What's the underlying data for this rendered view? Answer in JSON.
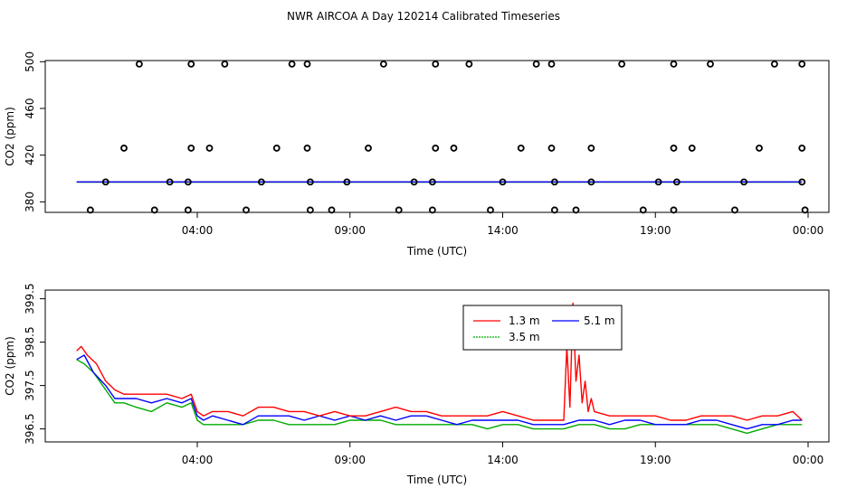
{
  "title": "NWR AIRCOA A  Day 120214  Calibrated Timeseries",
  "chart_data": [
    {
      "type": "scatter",
      "xlabel": "Time (UTC)",
      "ylabel": "CO2 (ppm)",
      "xlim": [
        0,
        24
      ],
      "ylim": [
        371,
        501
      ],
      "xticks": [
        {
          "value": 4,
          "label": "04:00"
        },
        {
          "value": 9,
          "label": "09:00"
        },
        {
          "value": 14,
          "label": "14:00"
        },
        {
          "value": 19,
          "label": "19:00"
        },
        {
          "value": 24,
          "label": "00:00"
        }
      ],
      "yticks": [
        {
          "value": 380,
          "label": "380"
        },
        {
          "value": 420,
          "label": "420"
        },
        {
          "value": 460,
          "label": "460"
        },
        {
          "value": 500,
          "label": "500"
        }
      ],
      "points": [
        [
          2.1,
          498
        ],
        [
          3.8,
          498
        ],
        [
          4.9,
          498
        ],
        [
          7.1,
          498
        ],
        [
          7.6,
          498
        ],
        [
          10.1,
          498
        ],
        [
          11.8,
          498
        ],
        [
          12.9,
          498
        ],
        [
          15.1,
          498
        ],
        [
          15.6,
          498
        ],
        [
          17.9,
          498
        ],
        [
          19.6,
          498
        ],
        [
          20.8,
          498
        ],
        [
          22.9,
          498
        ],
        [
          23.8,
          498
        ],
        [
          1.6,
          426
        ],
        [
          3.8,
          426
        ],
        [
          4.4,
          426
        ],
        [
          6.6,
          426
        ],
        [
          7.6,
          426
        ],
        [
          9.6,
          426
        ],
        [
          11.8,
          426
        ],
        [
          12.4,
          426
        ],
        [
          14.6,
          426
        ],
        [
          15.6,
          426
        ],
        [
          16.9,
          426
        ],
        [
          19.6,
          426
        ],
        [
          20.2,
          426
        ],
        [
          22.4,
          426
        ],
        [
          23.8,
          426
        ],
        [
          1.0,
          397
        ],
        [
          3.1,
          397
        ],
        [
          3.7,
          397
        ],
        [
          6.1,
          397
        ],
        [
          7.7,
          397
        ],
        [
          8.9,
          397
        ],
        [
          11.1,
          397
        ],
        [
          11.7,
          397
        ],
        [
          14.0,
          397
        ],
        [
          15.7,
          397
        ],
        [
          16.9,
          397
        ],
        [
          19.1,
          397
        ],
        [
          19.7,
          397
        ],
        [
          21.9,
          397
        ],
        [
          23.8,
          397
        ],
        [
          0.5,
          373
        ],
        [
          2.6,
          373
        ],
        [
          3.7,
          373
        ],
        [
          5.6,
          373
        ],
        [
          7.7,
          373
        ],
        [
          8.4,
          373
        ],
        [
          10.6,
          373
        ],
        [
          11.7,
          373
        ],
        [
          13.6,
          373
        ],
        [
          15.7,
          373
        ],
        [
          16.4,
          373
        ],
        [
          18.6,
          373
        ],
        [
          19.6,
          373
        ],
        [
          21.6,
          373
        ],
        [
          23.9,
          373
        ]
      ],
      "series": [
        {
          "name": "1.3 m",
          "color": "#ff0000",
          "values_ref": "chart_data.1"
        },
        {
          "name": "5.1 m",
          "color": "#0000ff"
        },
        {
          "name": "3.5 m",
          "color": "#00aa00"
        }
      ],
      "series_level_ppm": 397
    },
    {
      "type": "line",
      "xlabel": "Time (UTC)",
      "ylabel": "CO2 (ppm)",
      "xlim": [
        0,
        24
      ],
      "ylim": [
        396.2,
        399.7
      ],
      "xticks": [
        {
          "value": 4,
          "label": "04:00"
        },
        {
          "value": 9,
          "label": "09:00"
        },
        {
          "value": 14,
          "label": "14:00"
        },
        {
          "value": 19,
          "label": "19:00"
        },
        {
          "value": 24,
          "label": "00:00"
        }
      ],
      "yticks": [
        {
          "value": 396.5,
          "label": "396.5"
        },
        {
          "value": 397.5,
          "label": "397.5"
        },
        {
          "value": 398.5,
          "label": "398.5"
        },
        {
          "value": 399.5,
          "label": "399.5"
        }
      ],
      "legend": {
        "placement": "top-center",
        "entries": [
          {
            "name": "1.3 m",
            "color": "#ff0000"
          },
          {
            "name": "5.1 m",
            "color": "#0000ff"
          },
          {
            "name": "3.5 m",
            "color": "#00aa00"
          }
        ]
      },
      "series": [
        {
          "name": "1.3 m",
          "color": "#ff0000",
          "x": [
            0.05,
            0.2,
            0.4,
            0.7,
            1.0,
            1.3,
            1.6,
            2.0,
            2.5,
            3.0,
            3.5,
            3.8,
            4.0,
            4.2,
            4.5,
            5.0,
            5.5,
            6.0,
            6.5,
            7.0,
            7.5,
            8.0,
            8.5,
            9.0,
            9.5,
            10.0,
            10.5,
            11.0,
            11.5,
            12.0,
            12.5,
            13.0,
            13.5,
            14.0,
            14.5,
            15.0,
            15.5,
            15.8,
            16.0,
            16.1,
            16.2,
            16.3,
            16.4,
            16.5,
            16.6,
            16.7,
            16.8,
            16.9,
            17.0,
            17.5,
            18.0,
            18.5,
            19.0,
            19.5,
            20.0,
            20.5,
            21.0,
            21.5,
            22.0,
            22.5,
            23.0,
            23.5,
            23.8
          ],
          "values": [
            398.3,
            398.4,
            398.2,
            398.0,
            397.6,
            397.4,
            397.3,
            397.3,
            397.3,
            397.3,
            397.2,
            397.3,
            396.9,
            396.8,
            396.9,
            396.9,
            396.8,
            397.0,
            397.0,
            396.9,
            396.9,
            396.8,
            396.9,
            396.8,
            396.8,
            396.9,
            397.0,
            396.9,
            396.9,
            396.8,
            396.8,
            396.8,
            396.8,
            396.9,
            396.8,
            396.7,
            396.7,
            396.7,
            396.7,
            398.4,
            397.0,
            399.4,
            397.6,
            398.2,
            397.1,
            397.6,
            396.9,
            397.2,
            396.9,
            396.8,
            396.8,
            396.8,
            396.8,
            396.7,
            396.7,
            396.8,
            396.8,
            396.8,
            396.7,
            396.8,
            396.8,
            396.9,
            396.7
          ]
        },
        {
          "name": "5.1 m",
          "color": "#0000ff",
          "x": [
            0.05,
            0.3,
            0.6,
            1.0,
            1.3,
            1.6,
            2.0,
            2.5,
            3.0,
            3.5,
            3.8,
            4.0,
            4.2,
            4.5,
            5.0,
            5.5,
            6.0,
            6.5,
            7.0,
            7.5,
            8.0,
            8.5,
            9.0,
            9.5,
            10.0,
            10.5,
            11.0,
            11.5,
            12.0,
            12.5,
            13.0,
            13.5,
            14.0,
            14.5,
            15.0,
            15.5,
            16.0,
            16.5,
            17.0,
            17.5,
            18.0,
            18.5,
            19.0,
            19.5,
            20.0,
            20.5,
            21.0,
            21.5,
            22.0,
            22.5,
            23.0,
            23.5,
            23.8
          ],
          "values": [
            398.1,
            398.2,
            397.8,
            397.5,
            397.2,
            397.2,
            397.2,
            397.1,
            397.2,
            397.1,
            397.2,
            396.8,
            396.7,
            396.8,
            396.7,
            396.6,
            396.8,
            396.8,
            396.8,
            396.7,
            396.8,
            396.7,
            396.8,
            396.7,
            396.8,
            396.7,
            396.8,
            396.8,
            396.7,
            396.6,
            396.7,
            396.7,
            396.7,
            396.7,
            396.6,
            396.6,
            396.6,
            396.7,
            396.7,
            396.6,
            396.7,
            396.7,
            396.6,
            396.6,
            396.6,
            396.7,
            396.7,
            396.6,
            396.5,
            396.6,
            396.6,
            396.7,
            396.7
          ]
        },
        {
          "name": "3.5 m",
          "color": "#00aa00",
          "x": [
            0.05,
            0.3,
            0.6,
            1.0,
            1.3,
            1.6,
            2.0,
            2.5,
            3.0,
            3.5,
            3.8,
            4.0,
            4.2,
            4.5,
            5.0,
            5.5,
            6.0,
            6.5,
            7.0,
            7.5,
            8.0,
            8.5,
            9.0,
            9.5,
            10.0,
            10.5,
            11.0,
            11.5,
            12.0,
            12.5,
            13.0,
            13.5,
            14.0,
            14.5,
            15.0,
            15.5,
            16.0,
            16.5,
            17.0,
            17.5,
            18.0,
            18.5,
            19.0,
            19.5,
            20.0,
            20.5,
            21.0,
            21.5,
            22.0,
            22.5,
            23.0,
            23.5,
            23.8
          ],
          "values": [
            398.1,
            398.0,
            397.8,
            397.4,
            397.1,
            397.1,
            397.0,
            396.9,
            397.1,
            397.0,
            397.1,
            396.7,
            396.6,
            396.6,
            396.6,
            396.6,
            396.7,
            396.7,
            396.6,
            396.6,
            396.6,
            396.6,
            396.7,
            396.7,
            396.7,
            396.6,
            396.6,
            396.6,
            396.6,
            396.6,
            396.6,
            396.5,
            396.6,
            396.6,
            396.5,
            396.5,
            396.5,
            396.6,
            396.6,
            396.5,
            396.5,
            396.6,
            396.6,
            396.6,
            396.6,
            396.6,
            396.6,
            396.5,
            396.4,
            396.5,
            396.6,
            396.6,
            396.6
          ]
        }
      ]
    }
  ]
}
